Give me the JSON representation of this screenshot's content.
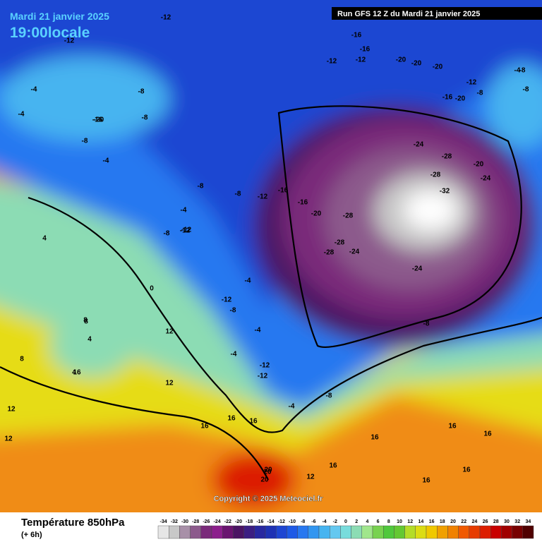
{
  "header": {
    "date": "Mardi 21 janvier 2025",
    "local_time": "19:00locale",
    "run": "Run GFS 12 Z du Mardi 21 janvier 2025"
  },
  "footer": {
    "title": "Température 850hPa",
    "lead": "(+ 6h)",
    "copyright": "Copyright © 2025 Meteociel.fr"
  },
  "colorbar": {
    "ticks": [
      -34,
      -32,
      -30,
      -28,
      -26,
      -24,
      -22,
      -20,
      -18,
      -16,
      -14,
      -12,
      -10,
      -8,
      -6,
      -4,
      -2,
      0,
      2,
      4,
      6,
      8,
      10,
      12,
      14,
      16,
      18,
      20,
      22,
      24,
      26,
      28,
      30,
      32,
      34
    ],
    "colors": [
      "#e6e6e6",
      "#c8c8c8",
      "#a890a8",
      "#8c5a8c",
      "#7a2a7a",
      "#8c1e8c",
      "#6a1470",
      "#4b1463",
      "#3c1e82",
      "#2828a0",
      "#1e32b4",
      "#1e46d2",
      "#1e5ae6",
      "#2878f0",
      "#3296f0",
      "#46b4f0",
      "#64c8f0",
      "#78dcdc",
      "#8cdcb4",
      "#a0e68c",
      "#78d250",
      "#50c83c",
      "#64c832",
      "#b4dc28",
      "#dcdc14",
      "#f0c800",
      "#f0a000",
      "#f08200",
      "#f05a00",
      "#e63c00",
      "#dc1e00",
      "#c80000",
      "#a00000",
      "#780000",
      "#500000"
    ]
  },
  "contour_labels": [
    -12,
    -12,
    -16,
    -16,
    -12,
    -12,
    -20,
    -20,
    -20,
    -12,
    -8,
    -16,
    -20,
    -8,
    -4,
    -8,
    -24,
    -28,
    -28,
    -20,
    -24,
    -32,
    -28,
    -28,
    -24,
    -28,
    -24,
    -8,
    -20,
    -16,
    -16,
    -12,
    -8,
    -8,
    -4,
    -8,
    -8,
    -4,
    -8,
    -4,
    -12,
    -8,
    -4,
    -4,
    -4,
    4,
    4,
    8,
    4,
    0,
    8,
    12,
    12,
    12,
    16,
    12,
    16,
    20,
    20,
    16,
    16,
    16,
    16,
    16,
    16,
    16,
    12,
    -4,
    -8,
    -12,
    -12,
    -16,
    -20,
    -8,
    -4,
    -12,
    -12,
    8,
    16,
    20
  ]
}
